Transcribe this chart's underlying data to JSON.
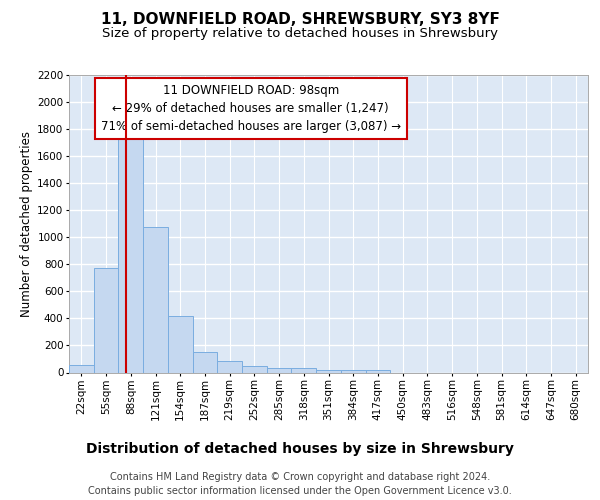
{
  "title1": "11, DOWNFIELD ROAD, SHREWSBURY, SY3 8YF",
  "title2": "Size of property relative to detached houses in Shrewsbury",
  "xlabel": "Distribution of detached houses by size in Shrewsbury",
  "ylabel": "Number of detached properties",
  "bin_labels": [
    "22sqm",
    "55sqm",
    "88sqm",
    "121sqm",
    "154sqm",
    "187sqm",
    "219sqm",
    "252sqm",
    "285sqm",
    "318sqm",
    "351sqm",
    "384sqm",
    "417sqm",
    "450sqm",
    "483sqm",
    "516sqm",
    "548sqm",
    "581sqm",
    "614sqm",
    "647sqm",
    "680sqm"
  ],
  "bar_values": [
    55,
    770,
    1750,
    1075,
    420,
    155,
    85,
    45,
    35,
    30,
    20,
    20,
    20,
    0,
    0,
    0,
    0,
    0,
    0,
    0,
    0
  ],
  "bar_color": "#c5d8f0",
  "bar_edge_color": "#7aade0",
  "annotation_line1": "11 DOWNFIELD ROAD: 98sqm",
  "annotation_line2": "← 29% of detached houses are smaller (1,247)",
  "annotation_line3": "71% of semi-detached houses are larger (3,087) →",
  "annotation_box_color": "#ffffff",
  "annotation_box_edge_color": "#cc0000",
  "ylim": [
    0,
    2200
  ],
  "yticks": [
    0,
    200,
    400,
    600,
    800,
    1000,
    1200,
    1400,
    1600,
    1800,
    2000,
    2200
  ],
  "footnote1": "Contains HM Land Registry data © Crown copyright and database right 2024.",
  "footnote2": "Contains public sector information licensed under the Open Government Licence v3.0.",
  "fig_bg_color": "#ffffff",
  "plot_bg_color": "#dde8f5",
  "grid_color": "#ffffff",
  "title1_fontsize": 11,
  "title2_fontsize": 9.5,
  "xlabel_fontsize": 10,
  "ylabel_fontsize": 8.5,
  "tick_fontsize": 7.5,
  "annotation_fontsize": 8.5,
  "footnote_fontsize": 7
}
